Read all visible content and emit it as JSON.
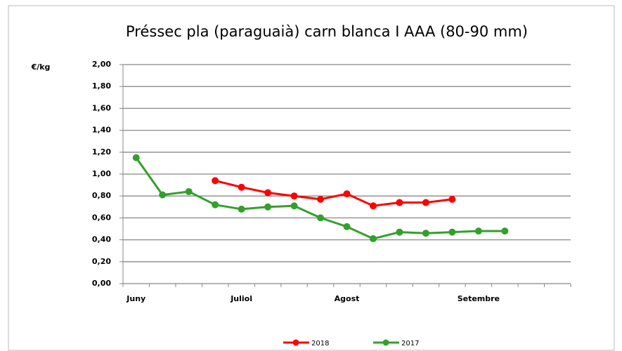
{
  "chart_data": {
    "type": "line",
    "title": "Préssec pla (paraguaià) carn blanca I AAA (80-90 mm)",
    "y_label": "€/kg",
    "categories": [
      "Juny",
      null,
      null,
      null,
      "Juliol",
      null,
      null,
      null,
      "Agost",
      null,
      null,
      null,
      null,
      "Setembre",
      null,
      null,
      null
    ],
    "series": [
      {
        "name": "2018",
        "color": "#ff0000",
        "values": [
          null,
          null,
          null,
          0.94,
          0.88,
          0.83,
          0.8,
          0.77,
          0.82,
          0.71,
          0.74,
          0.74,
          0.77,
          null,
          null,
          null,
          null
        ]
      },
      {
        "name": "2017",
        "color": "#33a02c",
        "values": [
          1.15,
          0.81,
          0.84,
          0.72,
          0.68,
          0.7,
          0.71,
          0.6,
          0.52,
          0.41,
          0.47,
          0.46,
          0.47,
          0.48,
          0.48,
          null,
          null
        ]
      }
    ],
    "ylim": [
      0,
      2
    ],
    "yticks": [
      {
        "value": 0,
        "label": "0,00"
      },
      {
        "value": 0.2,
        "label": "0,20"
      },
      {
        "value": 0.4,
        "label": "0,40"
      },
      {
        "value": 0.6,
        "label": "0,60"
      },
      {
        "value": 0.8,
        "label": "0,80"
      },
      {
        "value": 1,
        "label": "1,00"
      },
      {
        "value": 1.2,
        "label": "1,20"
      },
      {
        "value": 1.4,
        "label": "1,40"
      },
      {
        "value": 1.6,
        "label": "1,60"
      },
      {
        "value": 1.8,
        "label": "1,80"
      },
      {
        "value": 2,
        "label": "2,00"
      }
    ],
    "grid": true,
    "legend": "bottom"
  }
}
